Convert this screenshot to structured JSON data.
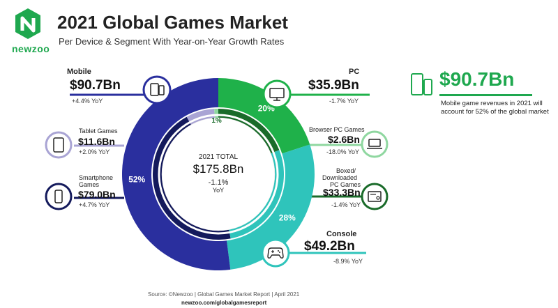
{
  "brand": {
    "name": "newzoo"
  },
  "header": {
    "title": "2021 Global Games Market",
    "subtitle": "Per Device & Segment With Year-on-Year Growth Rates"
  },
  "center": {
    "label": "2021 TOTAL",
    "value": "$175.8Bn",
    "growth": "-1.1%",
    "growth_unit": "YoY"
  },
  "labels": {
    "mobile": {
      "name": "Mobile",
      "value": "$90.7Bn",
      "yoy": "+4.4% YoY"
    },
    "tablet": {
      "name": "Tablet Games",
      "value": "$11.6Bn",
      "yoy": "+2.0% YoY"
    },
    "smartphone": {
      "name1": "Smartphone",
      "name2": "Games",
      "value": "$79.0Bn",
      "yoy": "+4.7% YoY"
    },
    "pc": {
      "name": "PC",
      "value": "$35.9Bn",
      "yoy": "-1.7% YoY"
    },
    "browser": {
      "name": "Browser PC Games",
      "value": "$2.6Bn",
      "yoy": "-18.0% YoY"
    },
    "boxed": {
      "name1": "Boxed/",
      "name2": "Downloaded",
      "name3": "PC Games",
      "value": "$33.3Bn",
      "yoy": "-1.4% YoY"
    },
    "console": {
      "name": "Console",
      "value": "$49.2Bn",
      "yoy": "-8.9% YoY"
    }
  },
  "callout": {
    "value": "$90.7Bn",
    "text": "Mobile game revenues in 2021 will account for 52% of the global market"
  },
  "footer": {
    "source": "Source: ©Newzoo | Global Games Market Report | April 2021",
    "url": "newzoo.com/globalgamesreport"
  },
  "colors": {
    "mobile": "#2a2f9e",
    "smartphone": "#141a5c",
    "tablet": "#a9a4d4",
    "pc": "#1fb14a",
    "boxed": "#1a6b2a",
    "browser": "#8fd7a0",
    "console": "#2fc4bb",
    "green": "#1fa84f"
  },
  "icons": [
    "newzoo-logo-icon",
    "tablet-phone-icon",
    "tablet-icon",
    "smartphone-icon",
    "monitor-icon",
    "laptop-icon",
    "console-box-icon",
    "gamepad-icon"
  ],
  "chart_data": {
    "type": "pie",
    "title": "2021 Global Games Market",
    "subtitle": "Per Device & Segment With Year-on-Year Growth Rates",
    "total": 175.8,
    "unit": "$Bn",
    "outer_ring": [
      {
        "name": "Mobile",
        "value": 90.7,
        "pct": 52,
        "yoy": 4.4
      },
      {
        "name": "PC",
        "value": 35.9,
        "pct": 20,
        "yoy": -1.7
      },
      {
        "name": "Console",
        "value": 49.2,
        "pct": 28,
        "yoy": -8.9
      }
    ],
    "inner_ring": [
      {
        "name": "Smartphone Games",
        "value": 79.0,
        "pct": 45,
        "yoy": 4.7
      },
      {
        "name": "Tablet Games",
        "value": 11.6,
        "pct": 7,
        "yoy": 2.0
      },
      {
        "name": "Browser PC Games",
        "value": 2.6,
        "pct": 1,
        "yoy": -18.0
      },
      {
        "name": "Boxed/Downloaded PC Games",
        "value": 33.3,
        "pct": 19,
        "yoy": -1.4
      },
      {
        "name": "Console",
        "value": 49.2,
        "pct": 28,
        "yoy": -8.9
      }
    ]
  }
}
